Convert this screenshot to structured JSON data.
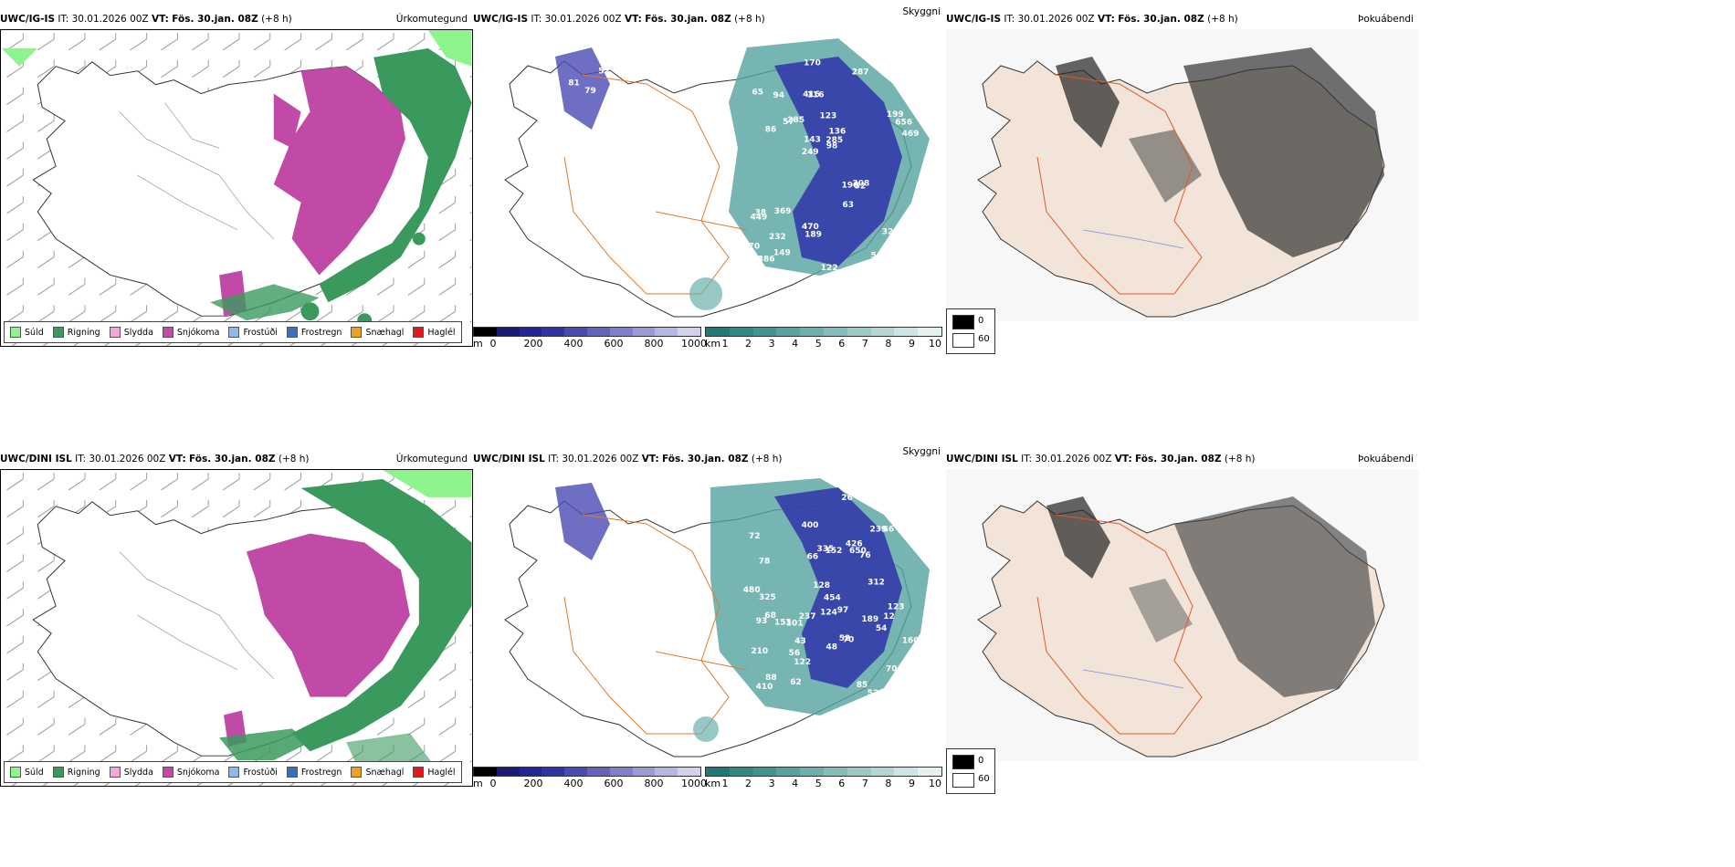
{
  "panels": [
    {
      "row": 0,
      "precip": {
        "model": "UWC/IG-IS",
        "it_label": "IT:",
        "it_value": "30.01.2026 00Z",
        "vt_label": "VT:",
        "vt_value": "Fös. 30.jan. 08Z",
        "lead": "(+8 h)",
        "type_title": "Úrkomutegund"
      },
      "cloud": {
        "model": "UWC/IG-IS",
        "it_label": "IT:",
        "it_value": "30.01.2026 00Z",
        "vt_label": "VT:",
        "vt_value": "Fös. 30.jan. 08Z",
        "lead": "(+8 h)",
        "type_title": "Skyggni"
      },
      "fog": {
        "model": "UWC/IG-IS",
        "it_label": "IT:",
        "it_value": "30.01.2026 00Z",
        "vt_label": "VT:",
        "vt_value": "Fös. 30.jan. 08Z",
        "lead": "(+8 h)",
        "type_title": "Þokuábendi"
      }
    },
    {
      "row": 1,
      "precip": {
        "model": "UWC/DINI ISL",
        "it_label": "IT:",
        "it_value": "30.01.2026 00Z",
        "vt_label": "VT:",
        "vt_value": "Fös. 30.jan. 08Z",
        "lead": "(+8 h)",
        "type_title": "Úrkomutegund"
      },
      "cloud": {
        "model": "UWC/DINI ISL",
        "it_label": "IT:",
        "it_value": "30.01.2026 00Z",
        "vt_label": "VT:",
        "vt_value": "Fös. 30.jan. 08Z",
        "lead": "(+8 h)",
        "type_title": "Skyggni"
      },
      "fog": {
        "model": "UWC/DINI ISL",
        "it_label": "IT:",
        "it_value": "30.01.2026 00Z",
        "vt_label": "VT:",
        "vt_value": "Fös. 30.jan. 08Z",
        "lead": "(+8 h)",
        "type_title": "Þokuábendi"
      }
    }
  ],
  "ptype_legend": [
    {
      "label": "Súld",
      "color": "#8ef58e"
    },
    {
      "label": "Rigning",
      "color": "#3a9a5e"
    },
    {
      "label": "Slydda",
      "color": "#f4a6d6"
    },
    {
      "label": "Snjókoma",
      "color": "#c04aa6"
    },
    {
      "label": "Frostúði",
      "color": "#8fb8e8"
    },
    {
      "label": "Frostregn",
      "color": "#3a6fc0"
    },
    {
      "label": "Snæhagl",
      "color": "#f0a020"
    },
    {
      "label": "Haglél",
      "color": "#e01818"
    }
  ],
  "cloud_base_scale": {
    "unit": "m",
    "ticks": [
      "0",
      "200",
      "400",
      "600",
      "800",
      "1000"
    ],
    "colors": [
      "#000000",
      "#1a1a7a",
      "#22249a",
      "#2e34a8",
      "#4a4ab4",
      "#6464c0",
      "#7e80cc",
      "#9a9ad6",
      "#b6b6e2",
      "#d2d2ee"
    ]
  },
  "visibility_scale": {
    "unit": "km",
    "ticks": [
      "1",
      "2",
      "3",
      "4",
      "5",
      "6",
      "7",
      "8",
      "9",
      "10"
    ],
    "colors": [
      "#1e7a76",
      "#2f8a86",
      "#3e9692",
      "#55a39f",
      "#6cb0ac",
      "#84bdba",
      "#9ccac7",
      "#b4d7d5",
      "#cce4e3",
      "#e4f1f0"
    ]
  },
  "fog_legend": {
    "high": "0",
    "low": "60",
    "high_color": "#000000",
    "low_color": "#ffffff"
  },
  "cloud_labels_row0": [
    "518",
    "81",
    "58",
    "79",
    "52",
    "386",
    "416",
    "123",
    "38",
    "285",
    "370",
    "232",
    "116",
    "136",
    "52",
    "65",
    "170",
    "469",
    "190",
    "199",
    "249",
    "470",
    "143",
    "94",
    "287",
    "369",
    "54",
    "32",
    "208",
    "122",
    "57",
    "86",
    "63",
    "149",
    "656",
    "285",
    "275",
    "189",
    "98",
    "449"
  ],
  "cloud_labels_row1": [
    "70",
    "68",
    "52",
    "72",
    "70",
    "78",
    "88",
    "101",
    "76",
    "335",
    "650",
    "52",
    "122",
    "400",
    "97",
    "210",
    "189",
    "454",
    "480",
    "410",
    "175",
    "152",
    "312",
    "160",
    "123",
    "325",
    "153",
    "124",
    "128",
    "66",
    "70",
    "93",
    "56",
    "426",
    "66",
    "54",
    "12",
    "85",
    "239",
    "318",
    "43",
    "48",
    "62",
    "26",
    "237"
  ]
}
